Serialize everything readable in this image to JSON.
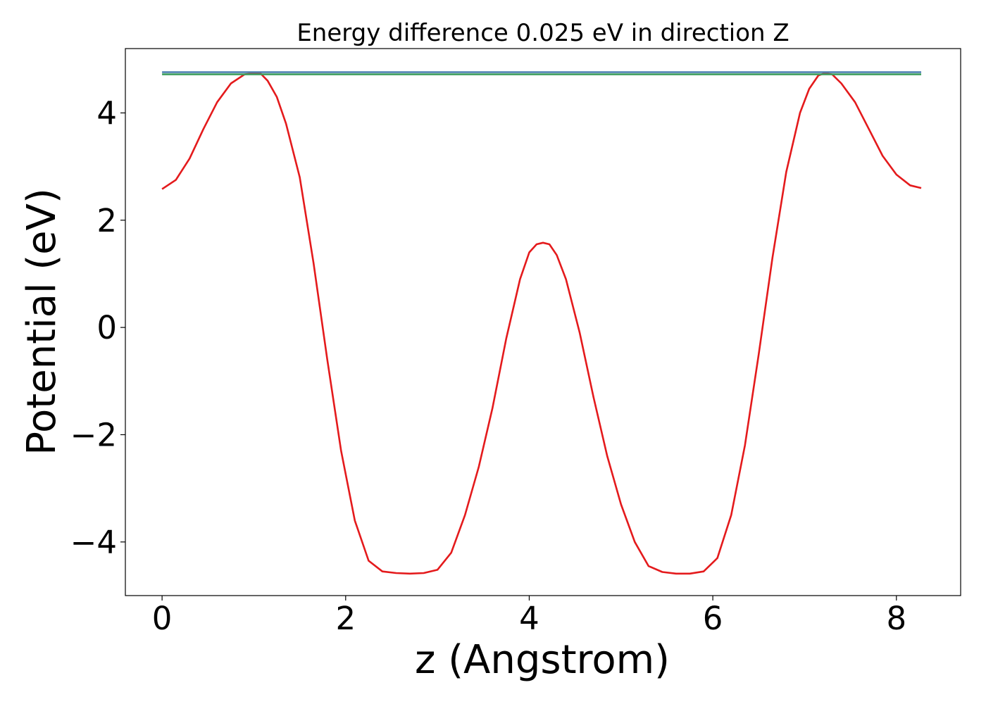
{
  "chart_data": {
    "type": "line",
    "title": "Energy difference 0.025 eV in direction Z",
    "xlabel": "z (Angstrom)",
    "ylabel": "Potential (eV)",
    "xlim": [
      -0.4,
      8.7
    ],
    "ylim": [
      -5.0,
      5.2
    ],
    "xticks": [
      0,
      2,
      4,
      6,
      8
    ],
    "xtick_labels": [
      "0",
      "2",
      "4",
      "6",
      "8"
    ],
    "yticks": [
      -4,
      -2,
      0,
      2,
      4
    ],
    "ytick_labels": [
      "−4",
      "−2",
      "0",
      "2",
      "4"
    ],
    "grid": false,
    "legend": "none",
    "series": [
      {
        "color": "#e41a1c",
        "x": [
          0.0,
          0.15,
          0.3,
          0.45,
          0.6,
          0.75,
          0.9,
          1.0,
          1.07,
          1.15,
          1.25,
          1.35,
          1.5,
          1.65,
          1.8,
          1.95,
          2.1,
          2.25,
          2.4,
          2.55,
          2.7,
          2.85,
          3.0,
          3.15,
          3.3,
          3.45,
          3.6,
          3.75,
          3.9,
          4.0,
          4.08,
          4.15,
          4.22,
          4.3,
          4.4,
          4.55,
          4.7,
          4.85,
          5.0,
          5.15,
          5.3,
          5.45,
          5.6,
          5.75,
          5.9,
          6.05,
          6.2,
          6.35,
          6.5,
          6.65,
          6.8,
          6.95,
          7.05,
          7.15,
          7.22,
          7.3,
          7.4,
          7.55,
          7.7,
          7.85,
          8.0,
          8.15,
          8.27
        ],
        "y": [
          2.58,
          2.75,
          3.15,
          3.7,
          4.2,
          4.55,
          4.72,
          4.74,
          4.74,
          4.6,
          4.3,
          3.8,
          2.8,
          1.2,
          -0.6,
          -2.3,
          -3.6,
          -4.35,
          -4.55,
          -4.58,
          -4.59,
          -4.58,
          -4.52,
          -4.2,
          -3.5,
          -2.6,
          -1.5,
          -0.2,
          0.9,
          1.4,
          1.55,
          1.58,
          1.55,
          1.35,
          0.9,
          -0.1,
          -1.3,
          -2.4,
          -3.3,
          -4.0,
          -4.45,
          -4.56,
          -4.59,
          -4.59,
          -4.55,
          -4.3,
          -3.5,
          -2.2,
          -0.5,
          1.3,
          2.9,
          4.0,
          4.45,
          4.7,
          4.74,
          4.72,
          4.55,
          4.2,
          3.7,
          3.2,
          2.85,
          2.65,
          2.6
        ]
      },
      {
        "color": "#4a7eb0",
        "x": [
          0.0,
          8.27
        ],
        "y": [
          4.76,
          4.76
        ]
      },
      {
        "color": "#3d9e5e",
        "x": [
          0.0,
          8.27
        ],
        "y": [
          4.72,
          4.72
        ]
      }
    ]
  }
}
